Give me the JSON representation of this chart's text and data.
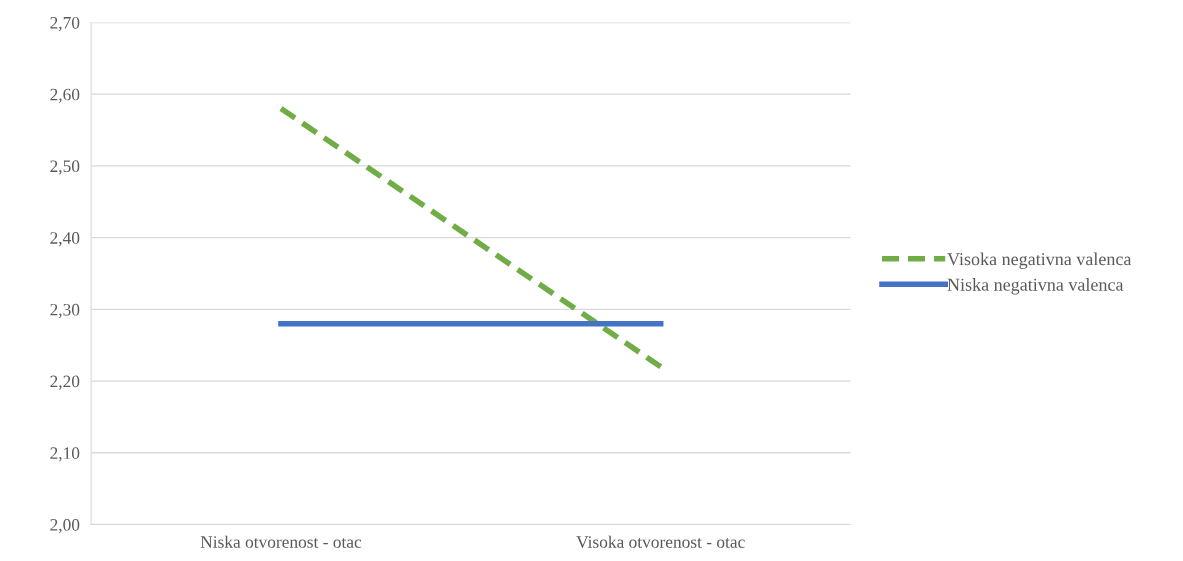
{
  "chart_data": {
    "type": "line",
    "categories": [
      "Niska otvorenost - otac",
      "Visoka otvorenost - otac"
    ],
    "series": [
      {
        "name": "Visoka negativna valenca",
        "color": "#70ad47",
        "values": [
          2.58,
          2.22
        ],
        "line_style": "dashed"
      },
      {
        "name": "Niska negativna valenca",
        "color": "#4472c4",
        "values": [
          2.28,
          2.28
        ],
        "line_style": "solid"
      }
    ],
    "ylim": [
      2.0,
      2.7
    ],
    "yticks": [
      {
        "value": 2.0,
        "label": "2,00"
      },
      {
        "value": 2.1,
        "label": "2,10"
      },
      {
        "value": 2.2,
        "label": "2,20"
      },
      {
        "value": 2.3,
        "label": "2,30"
      },
      {
        "value": 2.4,
        "label": "2,40"
      },
      {
        "value": 2.5,
        "label": "2,50"
      },
      {
        "value": 2.6,
        "label": "2,60"
      },
      {
        "value": 2.7,
        "label": "2,70"
      }
    ],
    "grid": "y",
    "legend": "right",
    "marker": "none"
  }
}
